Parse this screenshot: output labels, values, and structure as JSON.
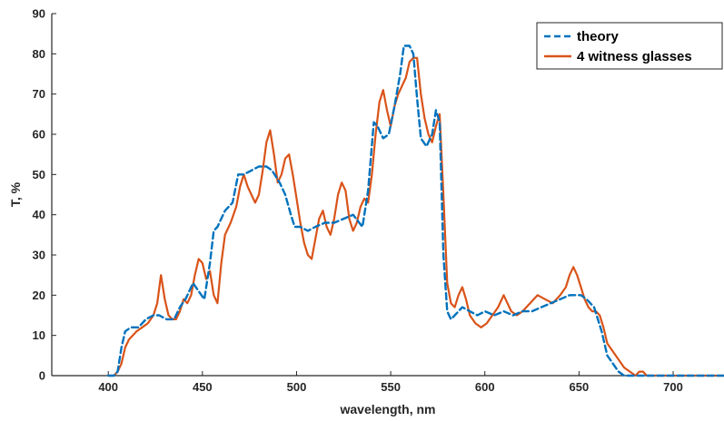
{
  "chart_data": {
    "type": "line",
    "xlabel": "wavelength, nm",
    "ylabel": "T, %",
    "xlim": [
      370,
      727
    ],
    "ylim": [
      0,
      90
    ],
    "xticks": [
      400,
      450,
      500,
      550,
      600,
      650,
      700
    ],
    "yticks": [
      0,
      10,
      20,
      30,
      40,
      50,
      60,
      70,
      80,
      90
    ],
    "grid": false,
    "legend_position": "top-right",
    "series": [
      {
        "name": "theory",
        "color": "#0072BD",
        "style": "dashed",
        "x": [
          400,
          403,
          405,
          407,
          409,
          412,
          416,
          420,
          424,
          427,
          431,
          435,
          438,
          441,
          445,
          448,
          451,
          454,
          456,
          458,
          462,
          466,
          469,
          472,
          476,
          480,
          484,
          487,
          491,
          494,
          497,
          499,
          502,
          506,
          510,
          515,
          520,
          525,
          530,
          535,
          538,
          541,
          543,
          546,
          549,
          552,
          555,
          557,
          560,
          562,
          564,
          566,
          569,
          572,
          574,
          576,
          578,
          580,
          582,
          584,
          588,
          592,
          596,
          600,
          605,
          610,
          615,
          620,
          625,
          630,
          635,
          640,
          645,
          648,
          651,
          654,
          658,
          662,
          665,
          668,
          671,
          674,
          677,
          680,
          683,
          686,
          690,
          700,
          710,
          727
        ],
        "values": [
          0,
          0,
          1,
          7,
          11,
          12,
          12,
          14,
          15,
          15,
          14,
          14,
          17,
          19,
          23,
          21,
          19,
          28,
          36,
          37,
          41,
          43,
          50,
          50,
          51,
          52,
          52,
          51,
          48,
          45,
          40,
          37,
          37,
          36,
          37,
          38,
          38,
          39,
          40,
          37,
          46,
          63,
          62,
          59,
          60,
          67,
          75,
          82,
          82,
          80,
          69,
          59,
          57,
          60,
          66,
          63,
          30,
          16,
          14,
          15,
          17,
          16,
          15,
          16,
          15,
          16,
          15,
          16,
          16,
          17,
          18,
          19,
          20,
          20,
          20,
          19,
          17,
          11,
          5,
          3,
          1,
          0,
          0,
          0,
          0,
          0,
          0,
          0,
          0,
          0
        ]
      },
      {
        "name": "4 witness glasses",
        "color": "#D95319",
        "style": "solid",
        "x": [
          400,
          403,
          405,
          407,
          409,
          411,
          413,
          415,
          418,
          421,
          424,
          426,
          428,
          430,
          432,
          434,
          436,
          438,
          440,
          442,
          444,
          446,
          448,
          450,
          452,
          454,
          456,
          458,
          460,
          462,
          465,
          468,
          470,
          472,
          474,
          476,
          478,
          480,
          482,
          484,
          486,
          488,
          490,
          492,
          494,
          496,
          498,
          500,
          502,
          504,
          506,
          508,
          510,
          512,
          514,
          516,
          518,
          520,
          522,
          524,
          526,
          528,
          530,
          532,
          534,
          536,
          538,
          540,
          542,
          544,
          546,
          548,
          550,
          552,
          554,
          556,
          558,
          560,
          562,
          564,
          566,
          568,
          570,
          572,
          574,
          576,
          578,
          580,
          582,
          584,
          586,
          588,
          590,
          592,
          595,
          598,
          601,
          604,
          607,
          610,
          612,
          614,
          617,
          620,
          624,
          628,
          632,
          636,
          640,
          643,
          645,
          647,
          649,
          651,
          653,
          655,
          657,
          659,
          661,
          663,
          665,
          668,
          671,
          674,
          677,
          680,
          682,
          684,
          686,
          690,
          700,
          710,
          727
        ],
        "values": [
          0,
          0,
          1,
          3,
          7,
          9,
          10,
          11,
          12,
          13,
          15,
          18,
          25,
          19,
          15,
          14,
          14,
          16,
          19,
          18,
          20,
          25,
          29,
          28,
          24,
          26,
          20,
          18,
          28,
          35,
          38,
          42,
          47,
          50,
          47,
          45,
          43,
          45,
          51,
          58,
          61,
          55,
          48,
          50,
          54,
          55,
          50,
          44,
          38,
          33,
          30,
          29,
          34,
          39,
          41,
          37,
          35,
          39,
          45,
          48,
          46,
          39,
          36,
          38,
          42,
          44,
          43,
          50,
          60,
          68,
          71,
          66,
          62,
          67,
          70,
          72,
          74,
          78,
          79,
          79,
          70,
          64,
          60,
          58,
          62,
          65,
          45,
          23,
          18,
          17,
          20,
          22,
          19,
          15,
          13,
          12,
          13,
          15,
          17,
          20,
          18,
          16,
          15,
          16,
          18,
          20,
          19,
          18,
          20,
          22,
          25,
          27,
          25,
          22,
          19,
          17,
          16,
          16,
          15,
          12,
          8,
          6,
          4,
          2,
          1,
          0,
          1,
          1,
          0,
          0,
          0,
          0,
          0
        ]
      }
    ]
  }
}
